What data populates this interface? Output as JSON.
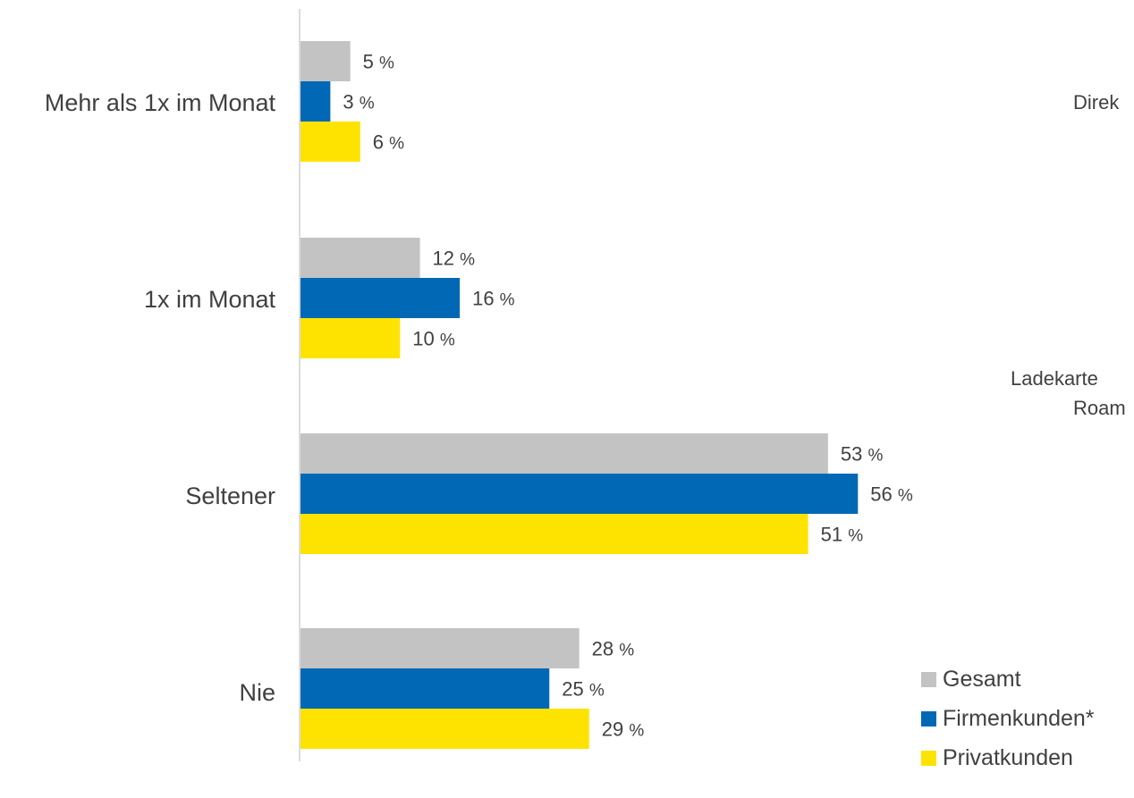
{
  "chart_data": {
    "type": "bar",
    "orientation": "horizontal",
    "categories": [
      "Mehr als 1x im Monat",
      "1x im Monat",
      "Seltener",
      "Nie"
    ],
    "series": [
      {
        "name": "Gesamt",
        "color": "#c3c3c3",
        "values": [
          5,
          12,
          53,
          28
        ]
      },
      {
        "name": "Firmenkunden*",
        "color": "#0068b4",
        "values": [
          3,
          16,
          56,
          25
        ]
      },
      {
        "name": "Privatkunden",
        "color": "#ffe300",
        "values": [
          6,
          10,
          51,
          29
        ]
      }
    ],
    "value_suffix": "%",
    "legend_position": "bottom-right",
    "grid": false
  },
  "side_text": {
    "line1": "Direk",
    "line2": "Ladekarte",
    "line3": "Roam"
  }
}
